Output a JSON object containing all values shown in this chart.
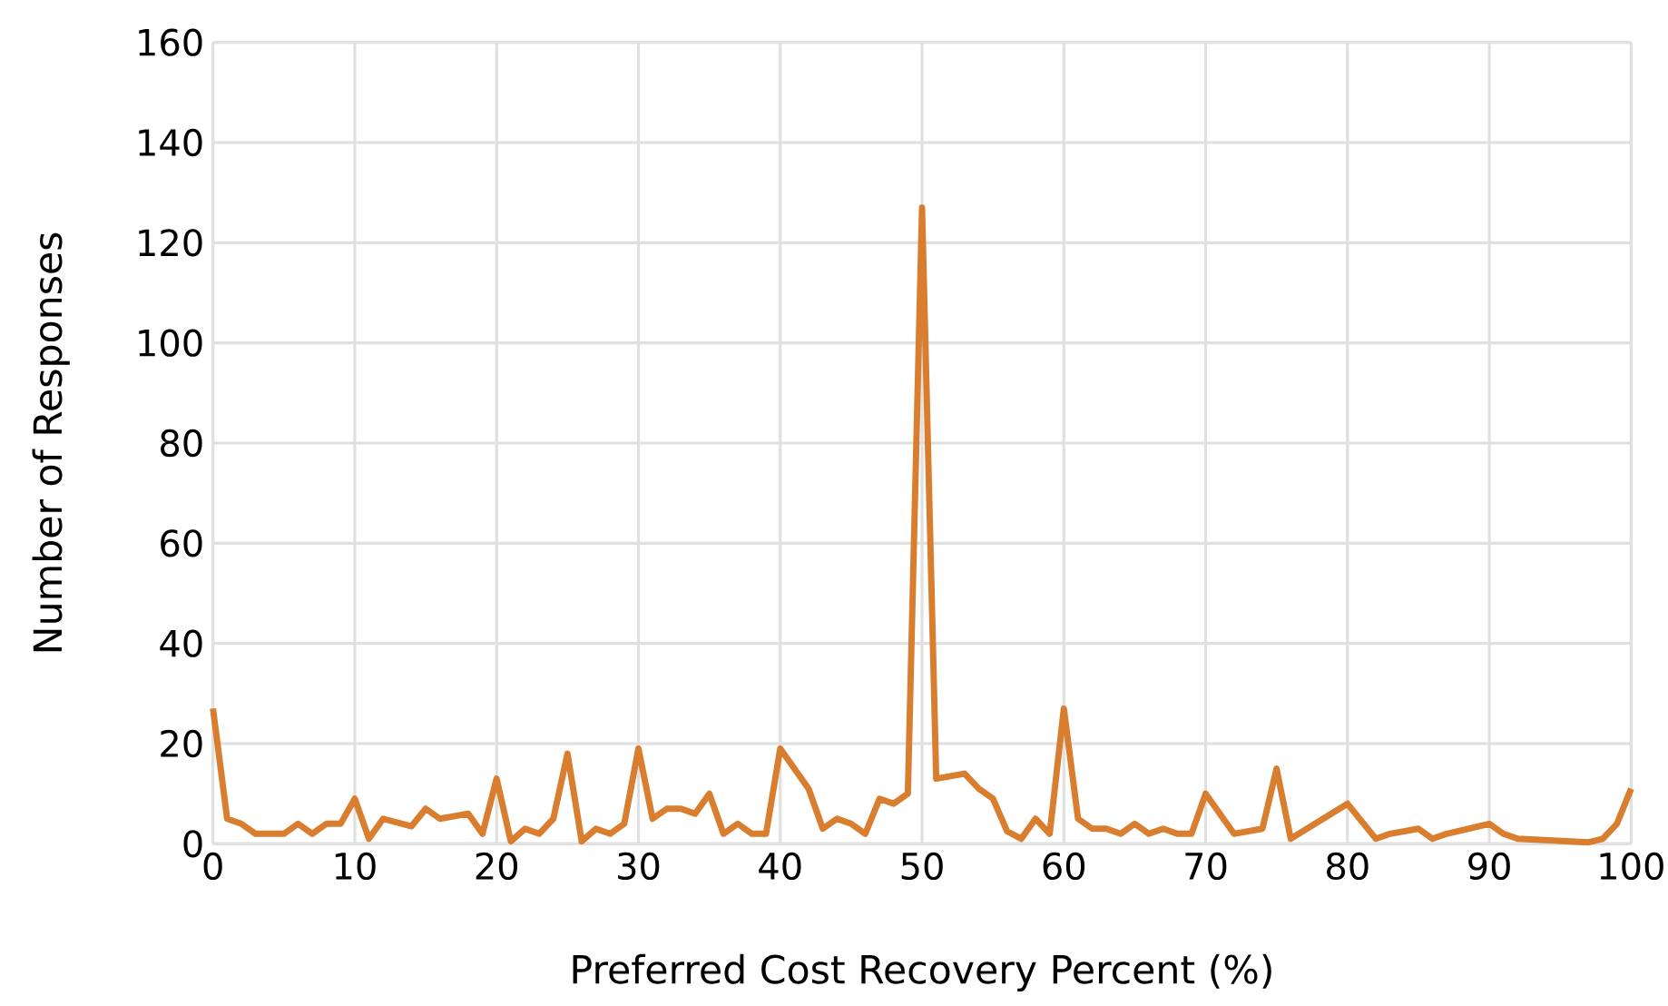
{
  "chart_data": {
    "type": "line",
    "xlabel": "Preferred Cost Recovery Percent (%)",
    "ylabel": "Number of Responses",
    "x": [
      0,
      1,
      2,
      3,
      4,
      5,
      6,
      7,
      8,
      9,
      10,
      11,
      12,
      14,
      15,
      16,
      18,
      19,
      20,
      21,
      22,
      23,
      24,
      25,
      26,
      27,
      28,
      29,
      30,
      31,
      32,
      33,
      34,
      35,
      36,
      37,
      38,
      39,
      40,
      42,
      43,
      44,
      45,
      46,
      47,
      48,
      49,
      50,
      51,
      52,
      53,
      54,
      55,
      56,
      57,
      58,
      59,
      60,
      61,
      62,
      63,
      64,
      65,
      66,
      67,
      68,
      69,
      70,
      72,
      74,
      75,
      76,
      80,
      82,
      83,
      85,
      86,
      87,
      90,
      91,
      92,
      97,
      98,
      99,
      100
    ],
    "series": [
      {
        "color": "#d97d2e",
        "values": [
          27,
          5,
          4,
          2,
          2,
          2,
          4,
          2,
          4,
          4,
          9,
          1,
          5,
          3.5,
          7,
          5,
          6,
          2,
          13,
          0.5,
          3,
          2,
          5,
          18,
          0.5,
          3,
          2,
          4,
          19,
          5,
          7,
          7,
          6,
          10,
          2,
          4,
          2,
          2,
          19,
          11,
          3,
          5,
          4,
          2,
          9,
          8,
          10,
          127,
          13,
          13.5,
          14,
          11,
          9,
          2.5,
          1,
          5,
          2,
          27,
          5,
          3,
          3,
          2,
          4,
          2,
          3,
          2,
          2,
          10,
          2,
          3,
          15,
          1,
          8,
          1,
          2,
          3,
          1,
          2,
          4,
          2,
          1,
          0.3,
          1,
          4,
          11
        ]
      }
    ],
    "xlim": [
      0,
      100
    ],
    "ylim": [
      0,
      160
    ],
    "xticks": [
      0,
      10,
      20,
      30,
      40,
      50,
      60,
      70,
      80,
      90,
      100
    ],
    "yticks": [
      0,
      20,
      40,
      60,
      80,
      100,
      120,
      140,
      160
    ],
    "grid": true,
    "marker": "none",
    "line_style": "solid"
  }
}
